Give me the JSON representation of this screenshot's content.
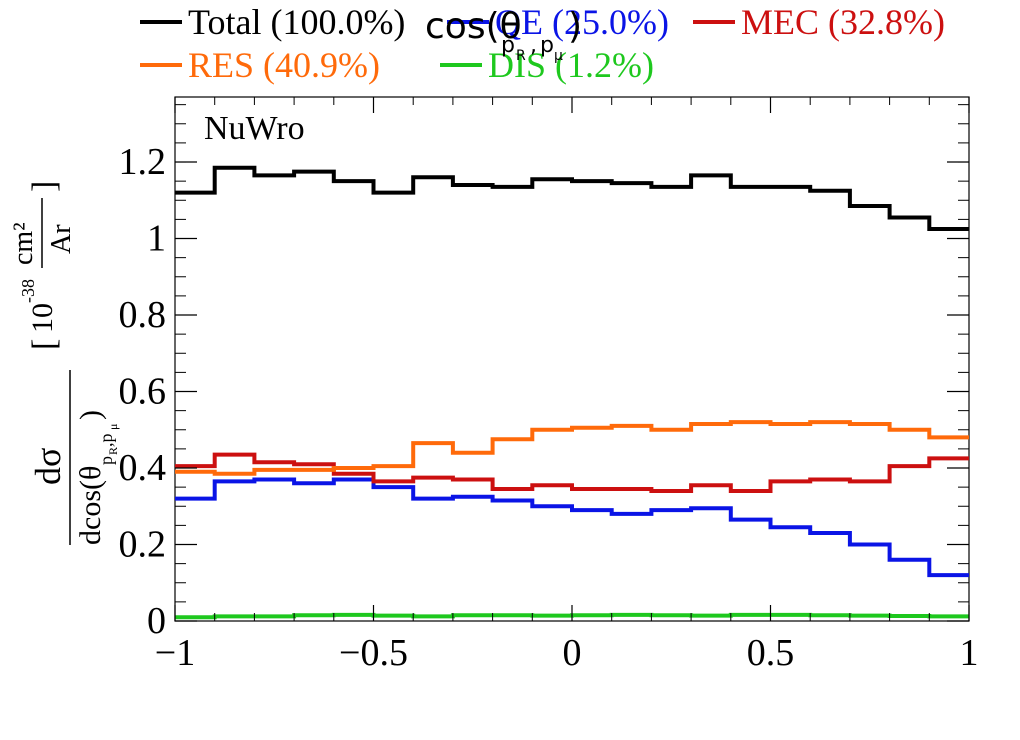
{
  "chart_data": {
    "type": "line",
    "title": "cos(θ p_R,p_μ)",
    "generator_label": "NuWro",
    "xlabel": "",
    "ylabel": {
      "numerator": "dσ",
      "denominator": "dcos(θ p_R,p_μ)",
      "unit_prefix": "10",
      "unit_exponent": "-38",
      "unit_numerator": "cm²",
      "unit_denominator": "Ar"
    },
    "xlim": [
      -1,
      1
    ],
    "ylim": [
      0,
      1.37
    ],
    "x_ticks": [
      -1,
      -0.5,
      0,
      0.5,
      1
    ],
    "x_tick_labels": [
      "−1",
      "−0.5",
      "0",
      "0.5",
      "1"
    ],
    "y_ticks": [
      0,
      0.2,
      0.4,
      0.6,
      0.8,
      1,
      1.2
    ],
    "y_tick_labels": [
      "0",
      "0.2",
      "0.4",
      "0.6",
      "0.8",
      "1",
      "1.2"
    ],
    "grid": false,
    "legend_position": "top",
    "bin_edges": [
      -1,
      -0.9,
      -0.8,
      -0.7,
      -0.6,
      -0.5,
      -0.4,
      -0.3,
      -0.2,
      -0.1,
      0,
      0.1,
      0.2,
      0.3,
      0.4,
      0.5,
      0.6,
      0.7,
      0.8,
      0.9,
      1
    ],
    "series": [
      {
        "name": "Total",
        "label": "Total (100.0%)",
        "color": "#000000",
        "values": [
          1.12,
          1.185,
          1.165,
          1.175,
          1.15,
          1.12,
          1.16,
          1.14,
          1.135,
          1.155,
          1.15,
          1.145,
          1.135,
          1.165,
          1.135,
          1.135,
          1.125,
          1.085,
          1.055,
          1.025
        ]
      },
      {
        "name": "QE",
        "label": "QE (25.0%)",
        "color": "#0a14e6",
        "values": [
          0.32,
          0.365,
          0.37,
          0.36,
          0.37,
          0.35,
          0.32,
          0.325,
          0.315,
          0.3,
          0.29,
          0.28,
          0.29,
          0.295,
          0.265,
          0.245,
          0.23,
          0.2,
          0.16,
          0.12
        ]
      },
      {
        "name": "MEC",
        "label": "MEC (32.8%)",
        "color": "#cc1010",
        "values": [
          0.405,
          0.435,
          0.415,
          0.41,
          0.385,
          0.365,
          0.375,
          0.37,
          0.345,
          0.355,
          0.345,
          0.345,
          0.34,
          0.355,
          0.34,
          0.365,
          0.37,
          0.365,
          0.405,
          0.425
        ]
      },
      {
        "name": "RES",
        "label": "RES (40.9%)",
        "color": "#ff6a0a",
        "values": [
          0.39,
          0.385,
          0.395,
          0.395,
          0.4,
          0.405,
          0.465,
          0.44,
          0.475,
          0.5,
          0.505,
          0.51,
          0.5,
          0.515,
          0.52,
          0.515,
          0.52,
          0.515,
          0.5,
          0.48
        ]
      },
      {
        "name": "DIS",
        "label": "DIS (1.2%)",
        "color": "#1ec81e",
        "values": [
          0.01,
          0.012,
          0.012,
          0.015,
          0.016,
          0.014,
          0.012,
          0.015,
          0.015,
          0.014,
          0.015,
          0.016,
          0.015,
          0.014,
          0.016,
          0.016,
          0.015,
          0.014,
          0.013,
          0.012
        ]
      }
    ]
  }
}
